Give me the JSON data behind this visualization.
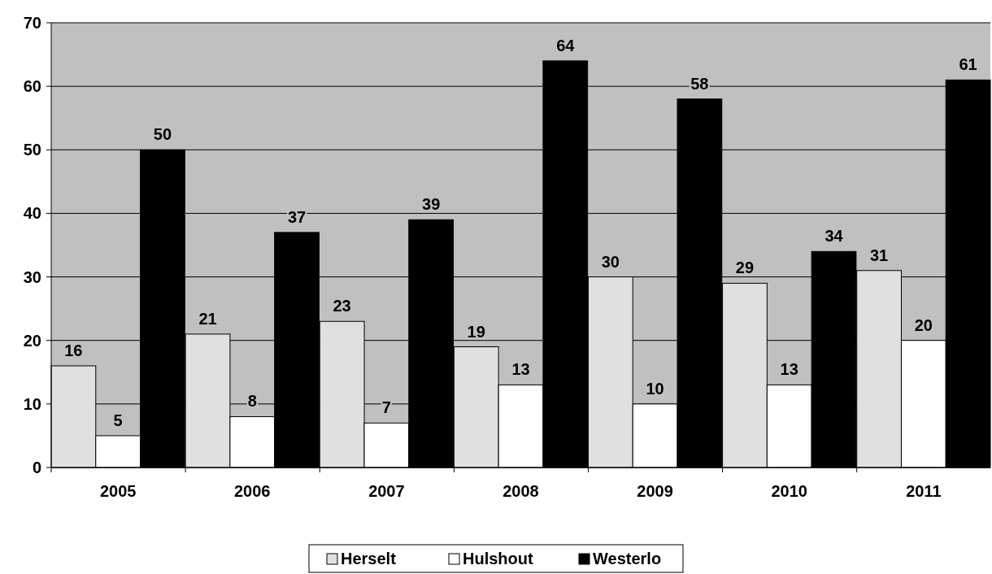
{
  "chart_data": {
    "type": "bar",
    "categories": [
      "2005",
      "2006",
      "2007",
      "2008",
      "2009",
      "2010",
      "2011"
    ],
    "series": [
      {
        "name": "Herselt",
        "color": "#e0e0e0",
        "values": [
          16,
          21,
          23,
          19,
          30,
          29,
          31
        ]
      },
      {
        "name": "Hulshout",
        "color": "#ffffff",
        "values": [
          5,
          8,
          7,
          13,
          10,
          13,
          20
        ]
      },
      {
        "name": "Westerlo",
        "color": "#000000",
        "values": [
          50,
          37,
          39,
          64,
          58,
          34,
          61
        ]
      }
    ],
    "ylim": [
      0,
      70
    ],
    "yticks": [
      0,
      10,
      20,
      30,
      40,
      50,
      60,
      70
    ],
    "grid": "y",
    "legend": "bottom",
    "data_labels": true
  }
}
